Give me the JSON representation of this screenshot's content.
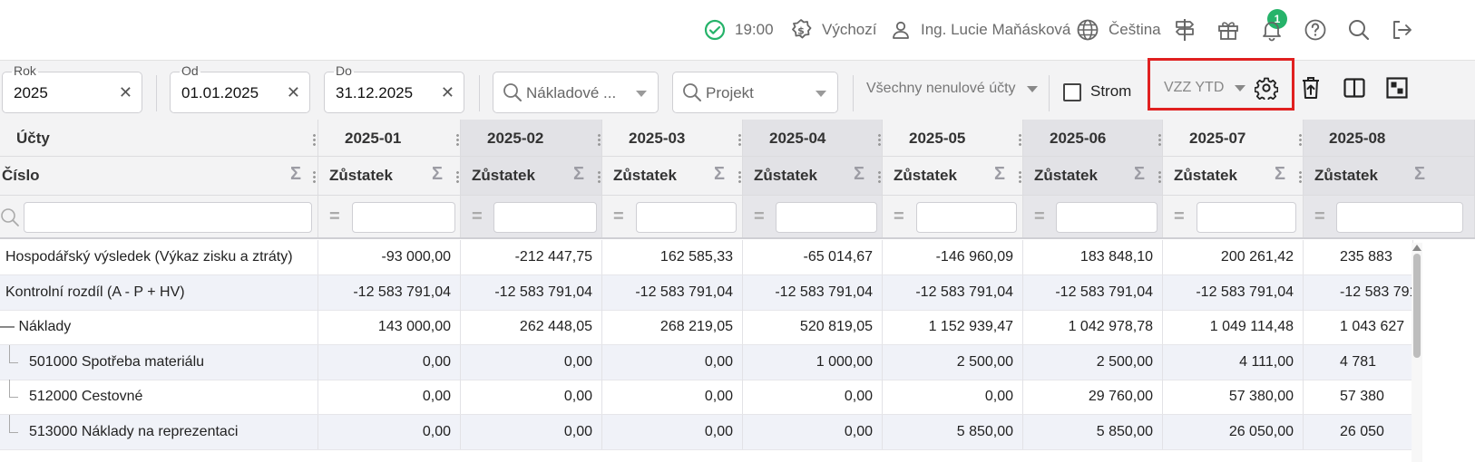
{
  "header": {
    "time": "19:00",
    "profile": "Výchozí",
    "user": "Ing. Lucie Maňásková",
    "language": "Čeština",
    "gift_badge": "1",
    "status_color": "#26b36a"
  },
  "filters": {
    "year": {
      "label": "Rok",
      "value": "2025"
    },
    "from": {
      "label": "Od",
      "value": "01.01.2025"
    },
    "to": {
      "label": "Do",
      "value": "31.12.2025"
    },
    "cost_center_placeholder": "Nákladové ...",
    "project_placeholder": "Projekt",
    "accounts_filter": "Všechny nenulové účty",
    "tree_label": "Strom",
    "report_variant": "VZZ YTD"
  },
  "grid": {
    "group_header": "Účty",
    "number_header": "Číslo",
    "months": [
      "2025-01",
      "2025-02",
      "2025-03",
      "2025-04",
      "2025-05",
      "2025-06",
      "2025-07",
      "2025-08"
    ],
    "balance_label": "Zůstatek",
    "rows": [
      {
        "name": "Hospodářský výsledek (Výkaz zisku a ztráty)",
        "values": [
          "-93 000,00",
          "-212 447,75",
          "162 585,33",
          "-65 014,67",
          "-146 960,09",
          "183 848,10",
          "200 261,42",
          "235 883"
        ]
      },
      {
        "name": "Kontrolní rozdíl (A - P + HV)",
        "values": [
          "-12 583 791,04",
          "-12 583 791,04",
          "-12 583 791,04",
          "-12 583 791,04",
          "-12 583 791,04",
          "-12 583 791,04",
          "-12 583 791,04",
          "-12 583 791"
        ]
      },
      {
        "name": "Náklady",
        "values": [
          "143 000,00",
          "262 448,05",
          "268 219,05",
          "520 819,05",
          "1 152 939,47",
          "1 042 978,78",
          "1 049 114,48",
          "1 043 627"
        ]
      },
      {
        "name": "501000 Spotřeba materiálu",
        "values": [
          "0,00",
          "0,00",
          "0,00",
          "1 000,00",
          "2 500,00",
          "2 500,00",
          "4 111,00",
          "4 781"
        ]
      },
      {
        "name": "512000 Cestovné",
        "values": [
          "0,00",
          "0,00",
          "0,00",
          "0,00",
          "0,00",
          "29 760,00",
          "57 380,00",
          "57 380"
        ]
      },
      {
        "name": "513000 Náklady na reprezentaci",
        "values": [
          "0,00",
          "0,00",
          "0,00",
          "0,00",
          "5 850,00",
          "5 850,00",
          "26 050,00",
          "26 050"
        ]
      }
    ]
  }
}
